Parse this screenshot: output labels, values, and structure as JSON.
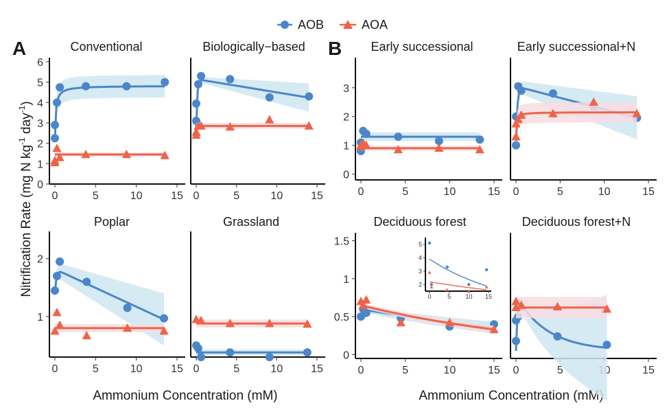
{
  "chart_data": {
    "type": "scatter",
    "legend": {
      "position": "top",
      "items": [
        {
          "name": "AOB",
          "color": "#4a86c8",
          "marker": "circle"
        },
        {
          "name": "AOA",
          "color": "#ef6348",
          "marker": "triangle"
        }
      ]
    },
    "colors": {
      "AOB": "#4a86c8",
      "AOA": "#ef6348",
      "AOB_band": "#cfe6f1",
      "AOA_band": "#f8dde2"
    },
    "ylabel_main": "Nitrification Rate (mg N kg",
    "ylabel_sup1": "-1",
    "ylabel_mid": " day",
    "ylabel_sup2": "-1",
    "ylabel_end": ")",
    "xlabel": "Ammonium Concentration (mM)",
    "panel_letters": [
      "A",
      "B"
    ],
    "panels": [
      {
        "title": "Conventional",
        "ylim": [
          0,
          6
        ],
        "yticks": [
          "0",
          "1",
          "2",
          "3",
          "4",
          "5",
          "6"
        ],
        "xlim": [
          0,
          15
        ],
        "xticks": [
          "0",
          "5",
          "10",
          "15"
        ],
        "series": [
          {
            "name": "AOB",
            "points": [
              [
                0,
                2.25
              ],
              [
                0,
                2.9
              ],
              [
                0.25,
                4.0
              ],
              [
                0.6,
                4.75
              ],
              [
                3.8,
                4.8
              ],
              [
                8.8,
                4.8
              ],
              [
                13.5,
                5.0
              ]
            ],
            "curve": {
              "type": "mm",
              "vmax": 4.82,
              "km": 0.12,
              "b0": 2.2
            },
            "band": 0.55
          },
          {
            "name": "AOA",
            "points": [
              [
                0,
                1.05
              ],
              [
                0,
                1.15
              ],
              [
                0.25,
                1.75
              ],
              [
                0.6,
                1.3
              ],
              [
                3.8,
                1.45
              ],
              [
                8.8,
                1.45
              ],
              [
                13.5,
                1.4
              ]
            ],
            "curve": {
              "type": "const",
              "value": 1.45
            },
            "band": 0.1
          }
        ]
      },
      {
        "title": "Biologically−based",
        "ylim": [
          0,
          6
        ],
        "yticks": [],
        "xlim": [
          0,
          15
        ],
        "xticks": [
          "0",
          "5",
          "10",
          "15"
        ],
        "series": [
          {
            "name": "AOB",
            "points": [
              [
                0,
                3.1
              ],
              [
                0,
                3.95
              ],
              [
                0.25,
                4.9
              ],
              [
                0.6,
                5.3
              ],
              [
                4.2,
                5.15
              ],
              [
                9.1,
                4.25
              ],
              [
                14,
                4.3
              ]
            ],
            "curve": {
              "type": "rise_decay",
              "y0": 2.8,
              "peak": 5.15,
              "k": 8,
              "slope": -0.065
            },
            "band_min": 0.12,
            "band_max": 0.7
          },
          {
            "name": "AOA",
            "points": [
              [
                0,
                2.4
              ],
              [
                0,
                2.55
              ],
              [
                0.25,
                2.85
              ],
              [
                0.6,
                2.85
              ],
              [
                4.2,
                2.8
              ],
              [
                9.1,
                3.15
              ],
              [
                14,
                2.85
              ]
            ],
            "curve": {
              "type": "const",
              "value": 2.85
            },
            "band": 0.15
          }
        ]
      },
      {
        "title": "Early successional",
        "ylim": [
          -0.2,
          3.9
        ],
        "yticks": [
          "0",
          "1",
          "2",
          "3"
        ],
        "xlim": [
          0,
          15
        ],
        "xticks": [
          "0",
          "5",
          "10",
          "15"
        ],
        "series": [
          {
            "name": "AOB",
            "points": [
              [
                0,
                0.8
              ],
              [
                0,
                1.1
              ],
              [
                0.25,
                1.5
              ],
              [
                0.6,
                1.4
              ],
              [
                4.2,
                1.3
              ],
              [
                8.8,
                1.15
              ],
              [
                13.4,
                1.2
              ]
            ],
            "curve": {
              "type": "const",
              "value": 1.3
            },
            "band": 0.15
          },
          {
            "name": "AOA",
            "points": [
              [
                0,
                0.95
              ],
              [
                0,
                1.0
              ],
              [
                0.25,
                1.05
              ],
              [
                0.6,
                1.0
              ],
              [
                4.2,
                0.85
              ],
              [
                8.8,
                0.9
              ],
              [
                13.4,
                0.85
              ]
            ],
            "curve": {
              "type": "const",
              "value": 0.9
            },
            "band": 0.08
          }
        ]
      },
      {
        "title": "Early successional+N",
        "ylim": [
          -0.2,
          3.9
        ],
        "yticks": [],
        "xlim": [
          0,
          15
        ],
        "xticks": [
          "0",
          "5",
          "10",
          "15"
        ],
        "series": [
          {
            "name": "AOB",
            "points": [
              [
                0,
                1.0
              ],
              [
                0,
                2.0
              ],
              [
                0.25,
                3.05
              ],
              [
                0.6,
                2.9
              ],
              [
                4.2,
                2.8
              ],
              [
                8.8,
                2.35
              ],
              [
                13.7,
                1.95
              ]
            ],
            "curve": {
              "type": "rise_decay",
              "y0": 0.9,
              "peak": 3.05,
              "k": 7,
              "slope": -0.08
            },
            "band_min": 0.2,
            "band_max": 0.75
          },
          {
            "name": "AOA",
            "points": [
              [
                0,
                1.3
              ],
              [
                0,
                1.75
              ],
              [
                0.25,
                1.9
              ],
              [
                0.6,
                2.05
              ],
              [
                4.2,
                2.1
              ],
              [
                8.8,
                2.5
              ],
              [
                13.7,
                2.1
              ]
            ],
            "curve": {
              "type": "mm",
              "vmax": 2.15,
              "km": 0.08,
              "b0": 1.3
            },
            "band": 0.35
          }
        ]
      },
      {
        "title": "Poplar",
        "ylim": [
          0.3,
          2.4
        ],
        "yticks": [
          "1",
          "2"
        ],
        "xlim": [
          0,
          15
        ],
        "xticks": [
          "0",
          "5",
          "10",
          "15"
        ],
        "series": [
          {
            "name": "AOB",
            "points": [
              [
                0,
                1.45
              ],
              [
                0.25,
                1.7
              ],
              [
                0.6,
                1.95
              ],
              [
                3.9,
                1.6
              ],
              [
                8.9,
                1.15
              ],
              [
                13.4,
                0.97
              ]
            ],
            "curve": {
              "type": "rise_decay",
              "y0": 1.4,
              "peak": 1.82,
              "k": 6,
              "slope": -0.065
            },
            "band_min": 0.12,
            "band_max": 0.45
          },
          {
            "name": "AOA",
            "points": [
              [
                0,
                0.75
              ],
              [
                0.25,
                1.07
              ],
              [
                0.6,
                0.85
              ],
              [
                3.9,
                0.67
              ],
              [
                8.9,
                0.8
              ],
              [
                13.4,
                0.75
              ]
            ],
            "curve": {
              "type": "const",
              "value": 0.8
            },
            "band": 0.07
          }
        ]
      },
      {
        "title": "Grassland",
        "ylim": [
          0.3,
          2.4
        ],
        "yticks": [],
        "xlim": [
          0,
          15
        ],
        "xticks": [
          "0",
          "5",
          "10",
          "15"
        ],
        "series": [
          {
            "name": "AOB",
            "points": [
              [
                0,
                0.5
              ],
              [
                0.25,
                0.45
              ],
              [
                0.6,
                0.3
              ],
              [
                4.2,
                0.38
              ],
              [
                9.1,
                0.3
              ],
              [
                13.8,
                0.38
              ]
            ],
            "curve": {
              "type": "const",
              "value": 0.38
            },
            "band": 0.05
          },
          {
            "name": "AOA",
            "points": [
              [
                0,
                0.95
              ],
              [
                0.6,
                0.93
              ],
              [
                4.2,
                0.88
              ],
              [
                9.1,
                0.88
              ],
              [
                13.8,
                0.87
              ]
            ],
            "curve": {
              "type": "const",
              "value": 0.88
            },
            "band": 0.07
          }
        ]
      },
      {
        "title": "Deciduous forest",
        "ylim": [
          -0.05,
          1.55
        ],
        "yticks": [
          "0",
          "0.5",
          "1",
          "1.5"
        ],
        "xlim": [
          0,
          15
        ],
        "xticks": [
          "0",
          "5",
          "10",
          "15"
        ],
        "series": [
          {
            "name": "AOB",
            "points": [
              [
                0,
                0.5
              ],
              [
                0.25,
                0.6
              ],
              [
                0.6,
                0.55
              ],
              [
                4.5,
                0.48
              ],
              [
                10,
                0.37
              ],
              [
                15,
                0.4
              ]
            ],
            "curve": {
              "type": "decay",
              "y0": 0.6,
              "k": 0.035
            },
            "band_min": 0.04,
            "band_max": 0.08
          },
          {
            "name": "AOA",
            "points": [
              [
                0,
                0.7
              ],
              [
                0.25,
                0.65
              ],
              [
                0.6,
                0.72
              ],
              [
                4.5,
                0.42
              ],
              [
                10,
                0.42
              ],
              [
                15,
                0.33
              ]
            ],
            "curve": {
              "type": "decay",
              "y0": 0.65,
              "k": 0.045
            },
            "band_min": 0.03,
            "band_max": 0.05
          }
        ],
        "inset": {
          "ylim": [
            1.5,
            5.2
          ],
          "yticks": [
            "2",
            "3",
            "4",
            "5"
          ],
          "xlim": [
            0,
            15
          ],
          "xticks": [
            "0",
            "5",
            "10",
            "15"
          ],
          "series": [
            {
              "name": "AOB",
              "points": [
                [
                  0,
                  5.1
                ],
                [
                  0.5,
                  2.0
                ],
                [
                  4.5,
                  3.3
                ],
                [
                  10,
                  2.0
                ],
                [
                  14.5,
                  3.1
                ]
              ],
              "curve": {
                "type": "decay",
                "y0": 3.9,
                "k": 0.05
              }
            },
            {
              "name": "AOA",
              "points": [
                [
                  0,
                  2.9
                ],
                [
                  0.5,
                  1.8
                ],
                [
                  4.5,
                  1.6
                ],
                [
                  10,
                  1.5
                ],
                [
                  14.5,
                  1.8
                ]
              ],
              "curve": {
                "type": "decay",
                "y0": 2.2,
                "k": 0.022
              }
            }
          ]
        }
      },
      {
        "title": "Deciduous forest+N",
        "ylim": [
          -0.05,
          1.55
        ],
        "yticks": [],
        "xlim": [
          0,
          15
        ],
        "xticks": [
          "0",
          "5",
          "10",
          "15"
        ],
        "series": [
          {
            "name": "AOB",
            "points": [
              [
                0,
                0.18
              ],
              [
                0,
                0.45
              ],
              [
                0.25,
                0.5
              ],
              [
                0.6,
                0.63
              ],
              [
                4.7,
                0.24
              ],
              [
                10.3,
                0.13
              ]
            ],
            "curve": {
              "type": "rise_decay",
              "y0": 0.05,
              "peak": 0.66,
              "k": 8,
              "slope": 0,
              "exp": 0.28
            },
            "band_min": 0.05,
            "band_max": 0.7
          },
          {
            "name": "AOA",
            "points": [
              [
                0,
                0.7
              ],
              [
                0,
                0.62
              ],
              [
                0.6,
                0.65
              ],
              [
                4.7,
                0.63
              ],
              [
                10.3,
                0.6
              ]
            ],
            "curve": {
              "type": "const",
              "value": 0.62
            },
            "band": 0.14
          }
        ]
      }
    ]
  }
}
